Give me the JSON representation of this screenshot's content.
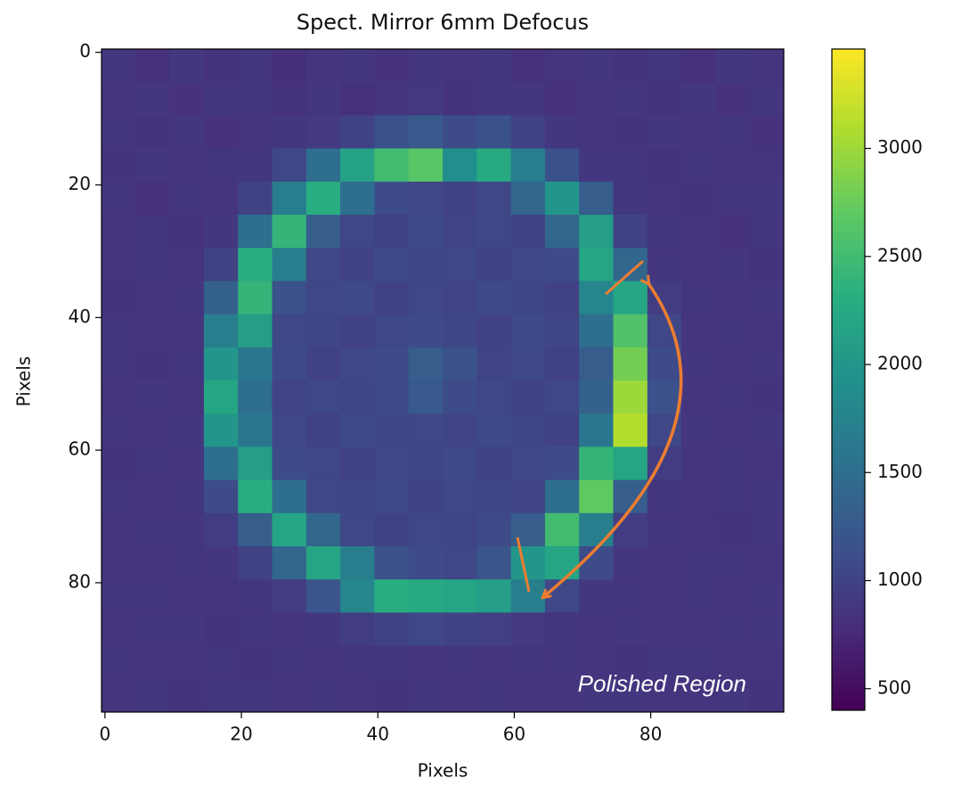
{
  "chart_data": {
    "type": "heatmap",
    "title": "Spect. Mirror 6mm Defocus",
    "x_label": "Pixels",
    "y_label": "Pixels",
    "colormap": "viridis",
    "x": [
      2,
      7,
      12,
      17,
      22,
      27,
      32,
      37,
      42,
      47,
      52,
      57,
      62,
      67,
      72,
      77,
      82,
      87,
      92,
      97
    ],
    "y": [
      2,
      7,
      12,
      17,
      22,
      27,
      32,
      37,
      42,
      47,
      52,
      57,
      62,
      67,
      72,
      77,
      82,
      87,
      92,
      97
    ],
    "z": [
      [
        880,
        820,
        900,
        840,
        870,
        810,
        860,
        890,
        830,
        870,
        850,
        900,
        820,
        860,
        880,
        840,
        870,
        820,
        900,
        850
      ],
      [
        850,
        890,
        830,
        870,
        900,
        840,
        880,
        820,
        860,
        910,
        840,
        870,
        890,
        830,
        860,
        880,
        840,
        900,
        830,
        870
      ],
      [
        870,
        840,
        880,
        830,
        860,
        900,
        920,
        1000,
        1150,
        1250,
        1100,
        1150,
        1000,
        900,
        860,
        840,
        880,
        850,
        870,
        830
      ],
      [
        840,
        880,
        850,
        870,
        900,
        1050,
        1500,
        2150,
        2500,
        2650,
        1900,
        2250,
        1700,
        1150,
        900,
        870,
        840,
        880,
        860,
        850
      ],
      [
        880,
        830,
        870,
        850,
        1000,
        1700,
        2300,
        1500,
        1100,
        1050,
        1000,
        1050,
        1400,
        2000,
        1300,
        900,
        860,
        840,
        870,
        890
      ],
      [
        850,
        870,
        840,
        900,
        1500,
        2400,
        1300,
        1050,
        1000,
        1080,
        1020,
        1050,
        1000,
        1400,
        2100,
        1000,
        880,
        850,
        830,
        870
      ],
      [
        860,
        890,
        850,
        1000,
        2300,
        1700,
        1050,
        1000,
        1100,
        1030,
        1060,
        1000,
        1050,
        1100,
        2200,
        1400,
        870,
        860,
        880,
        840
      ],
      [
        840,
        860,
        880,
        1350,
        2400,
        1150,
        1050,
        1080,
        1000,
        1050,
        1020,
        1080,
        1040,
        1000,
        1800,
        2200,
        950,
        870,
        850,
        880
      ],
      [
        870,
        850,
        860,
        1700,
        2100,
        1050,
        1030,
        1000,
        1060,
        1100,
        1040,
        1000,
        1070,
        1030,
        1500,
        2600,
        1050,
        860,
        880,
        850
      ],
      [
        880,
        840,
        870,
        2000,
        1600,
        1080,
        1000,
        1050,
        1100,
        1300,
        1150,
        1020,
        1060,
        1000,
        1300,
        2800,
        1100,
        880,
        850,
        870
      ],
      [
        850,
        880,
        860,
        2200,
        1500,
        1020,
        1060,
        1040,
        1080,
        1250,
        1100,
        1050,
        1000,
        1050,
        1350,
        3000,
        1150,
        850,
        870,
        840
      ],
      [
        870,
        850,
        900,
        2000,
        1600,
        1050,
        1000,
        1080,
        1030,
        1060,
        1020,
        1070,
        1040,
        1000,
        1600,
        3100,
        1050,
        880,
        860,
        890
      ],
      [
        840,
        870,
        850,
        1500,
        2100,
        1100,
        1050,
        1000,
        1060,
        1030,
        1080,
        1000,
        1050,
        1100,
        2400,
        2200,
        950,
        860,
        880,
        850
      ],
      [
        880,
        860,
        870,
        1100,
        2300,
        1500,
        1050,
        1030,
        1080,
        1000,
        1050,
        1040,
        1020,
        1500,
        2700,
        1300,
        870,
        850,
        870,
        880
      ],
      [
        850,
        870,
        880,
        950,
        1300,
        2200,
        1400,
        1050,
        1000,
        1060,
        1030,
        1080,
        1300,
        2500,
        1700,
        950,
        880,
        860,
        840,
        870
      ],
      [
        860,
        850,
        870,
        880,
        1000,
        1400,
        2200,
        1700,
        1150,
        1100,
        1050,
        1200,
        2000,
        2200,
        1100,
        880,
        850,
        870,
        890,
        850
      ],
      [
        870,
        880,
        850,
        860,
        880,
        950,
        1200,
        1800,
        2300,
        2250,
        2200,
        2100,
        1700,
        1050,
        900,
        870,
        860,
        880,
        850,
        870
      ],
      [
        850,
        870,
        890,
        840,
        870,
        860,
        900,
        950,
        1000,
        1050,
        1000,
        980,
        920,
        870,
        850,
        880,
        860,
        850,
        870,
        880
      ],
      [
        880,
        850,
        860,
        870,
        840,
        880,
        850,
        870,
        900,
        860,
        880,
        850,
        870,
        890,
        860,
        840,
        880,
        870,
        850,
        860
      ],
      [
        860,
        880,
        840,
        870,
        890,
        850,
        870,
        860,
        840,
        880,
        850,
        870,
        860,
        850,
        880,
        870,
        850,
        860,
        880,
        840
      ]
    ],
    "xlim": [
      -0.5,
      99.5
    ],
    "ylim": [
      99.5,
      -0.5
    ],
    "xticks": [
      0,
      20,
      40,
      60,
      80
    ],
    "yticks": [
      0,
      20,
      40,
      60,
      80
    ],
    "clim": [
      400,
      3460
    ],
    "cticks": [
      500,
      1000,
      1500,
      2000,
      2500,
      3000
    ],
    "annotation": "Polished Region"
  }
}
